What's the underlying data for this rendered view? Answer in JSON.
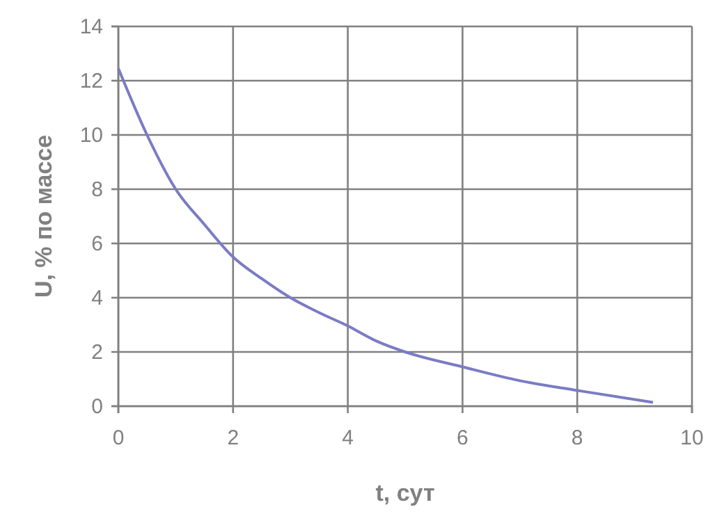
{
  "chart_data": {
    "type": "line",
    "xlabel": "t, сут",
    "ylabel": "U, % по массе",
    "x": [
      0,
      0.5,
      1,
      1.5,
      2,
      2.5,
      3,
      3.5,
      4,
      4.5,
      5,
      6,
      7,
      8,
      9.32
    ],
    "series": [
      {
        "color": "#7b7bc4",
        "values": [
          12.45,
          10.0,
          8.0,
          6.7,
          5.5,
          4.7,
          4.0,
          3.45,
          2.96,
          2.4,
          2.0,
          1.45,
          0.94,
          0.58,
          0.14
        ]
      }
    ],
    "xlim": [
      0,
      10
    ],
    "xticks": [
      0,
      2,
      4,
      6,
      8,
      10
    ],
    "ylim": [
      0,
      14
    ],
    "yticks": [
      0,
      2,
      4,
      6,
      8,
      10,
      12,
      14
    ],
    "grid": true,
    "marker": "none",
    "line_style": "solid"
  }
}
